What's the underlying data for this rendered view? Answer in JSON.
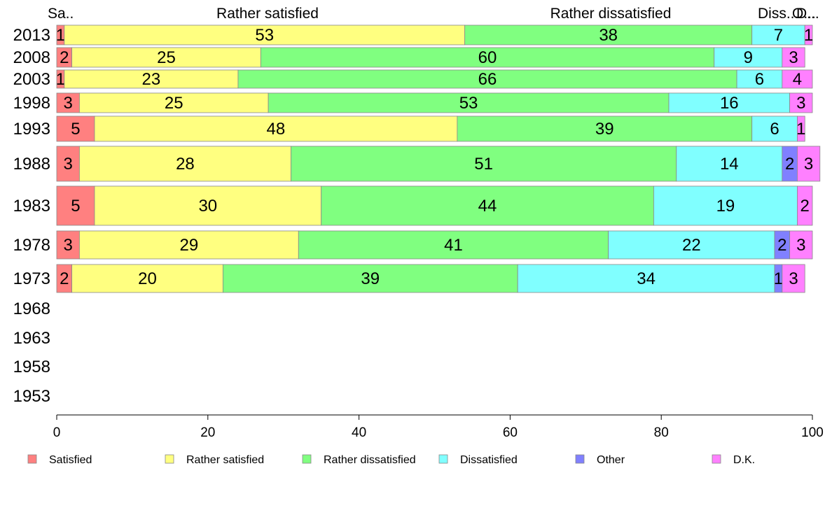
{
  "chart_data": {
    "type": "bar",
    "orientation": "horizontal",
    "stacked": true,
    "categories": [
      "2013",
      "2008",
      "2003",
      "1998",
      "1993",
      "1988",
      "1983",
      "1978",
      "1973",
      "1968",
      "1963",
      "1958",
      "1953"
    ],
    "series": [
      {
        "name": "Satisfied",
        "color": "#ff8080",
        "values": [
          1,
          2,
          1,
          3,
          5,
          3,
          5,
          3,
          2,
          null,
          null,
          null,
          null
        ]
      },
      {
        "name": "Rather satisfied",
        "color": "#ffff80",
        "values": [
          53,
          25,
          23,
          25,
          48,
          28,
          30,
          29,
          20,
          null,
          null,
          null,
          null
        ]
      },
      {
        "name": "Rather dissatisfied",
        "color": "#80ff80",
        "values": [
          38,
          60,
          66,
          53,
          39,
          51,
          44,
          41,
          39,
          null,
          null,
          null,
          null
        ]
      },
      {
        "name": "Dissatisfied",
        "color": "#80ffff",
        "values": [
          7,
          9,
          6,
          16,
          6,
          14,
          19,
          22,
          34,
          null,
          null,
          null,
          null
        ]
      },
      {
        "name": "Other",
        "color": "#8080ff",
        "values": [
          0,
          0,
          0,
          0,
          0,
          2,
          0,
          2,
          1,
          null,
          null,
          null,
          null
        ]
      },
      {
        "name": "D.K.",
        "color": "#ff80ff",
        "values": [
          1,
          3,
          4,
          3,
          1,
          3,
          2,
          3,
          3,
          null,
          null,
          null,
          null
        ]
      }
    ],
    "top_labels": [
      "Sa..",
      "Rather satisfied",
      "Rather dissatisfied",
      "Diss...",
      "O...",
      "D..."
    ],
    "xticks": [
      0,
      20,
      40,
      60,
      80,
      100
    ],
    "xlim": [
      0,
      100
    ],
    "title": "",
    "xlabel": "",
    "ylabel": "",
    "grid": false,
    "legend_position": "bottom"
  }
}
